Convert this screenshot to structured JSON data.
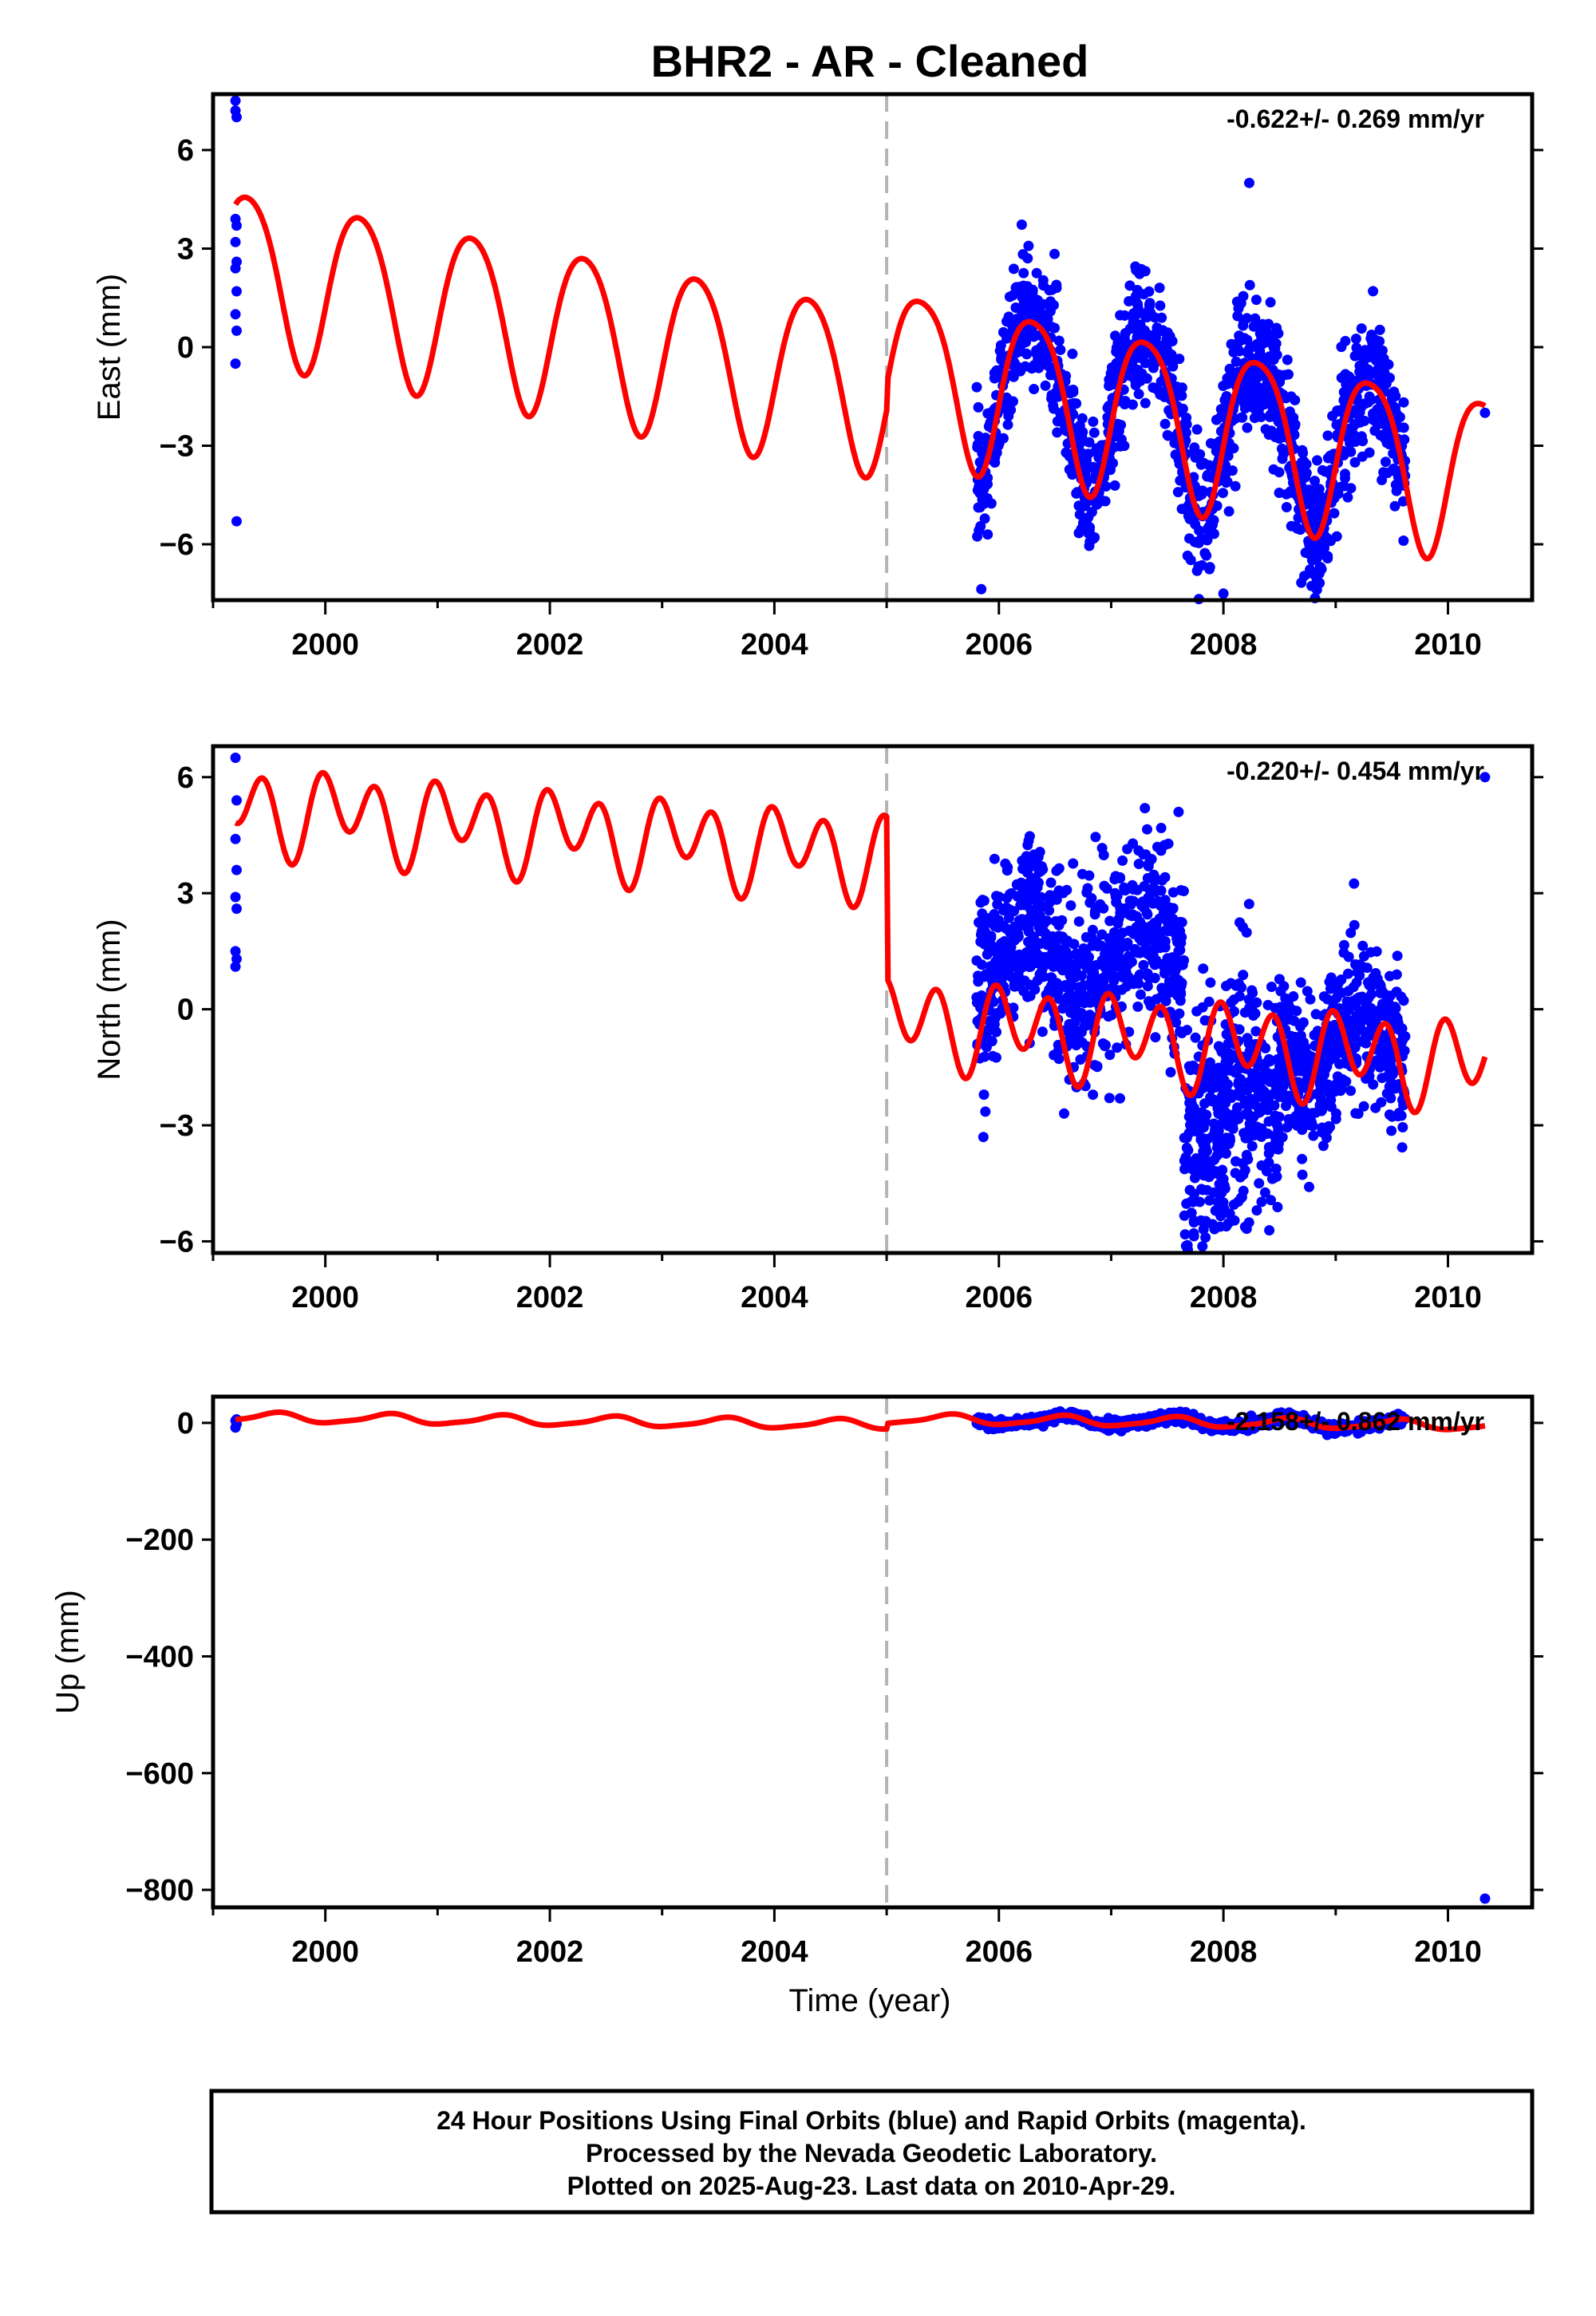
{
  "chart_data": {
    "type": "scatter",
    "title": "BHR2  - AR - Cleaned",
    "xlabel": "Time (year)",
    "x_ticks": [
      2000,
      2002,
      2004,
      2006,
      2008,
      2010
    ],
    "xlim": [
      1999.0,
      2010.75
    ],
    "break_epoch": 2005.0,
    "colors": {
      "observations": "#0000ff",
      "model": "#ff0000",
      "break_line": "#b4b4b4"
    },
    "panels": [
      {
        "id": "east",
        "ylabel": "East (mm)",
        "ylim": [
          -7.7,
          7.7
        ],
        "y_ticks": [
          6,
          3,
          0,
          -3,
          -6
        ],
        "y_tick_labels": [
          "6",
          "3",
          "0",
          "−3",
          "−6"
        ],
        "rate_label": "-0.622+/- 0.269 mm/yr",
        "model": {
          "start": 1999.2,
          "end": 2010.33,
          "break": 2005.0,
          "pre": {
            "offset": -1.25,
            "trend": -0.622,
            "annual_amp": 2.55,
            "annual_phase_deg": -20,
            "semi_amp": 0.3,
            "semi_phase_deg": 40
          },
          "post": {
            "offset": -0.55,
            "trend": -0.622,
            "annual_amp": 2.5,
            "annual_phase_deg": -20,
            "semi_amp": 0.4,
            "semi_phase_deg": 40
          }
        },
        "early_points": [
          [
            1999.2,
            7.5
          ],
          [
            1999.2,
            7.2
          ],
          [
            1999.21,
            7.0
          ],
          [
            1999.2,
            3.9
          ],
          [
            1999.21,
            3.7
          ],
          [
            1999.2,
            3.2
          ],
          [
            1999.21,
            2.6
          ],
          [
            1999.2,
            2.4
          ],
          [
            1999.21,
            1.7
          ],
          [
            1999.2,
            1.0
          ],
          [
            1999.21,
            0.5
          ],
          [
            1999.2,
            -0.5
          ],
          [
            1999.21,
            -5.3
          ]
        ],
        "late_points": [
          [
            2010.33,
            -2.0
          ],
          [
            2008.0,
            -7.5
          ],
          [
            2008.23,
            5.0
          ]
        ],
        "cloud": {
          "start": 2005.8,
          "end": 2009.62,
          "noise": 1.0,
          "count": 1400
        }
      },
      {
        "id": "north",
        "ylabel": "North (mm)",
        "ylim": [
          -6.3,
          6.8
        ],
        "y_ticks": [
          6,
          3,
          0,
          -3,
          -6
        ],
        "y_tick_labels": [
          "6",
          "3",
          "0",
          "−3",
          "−6"
        ],
        "rate_label": "-0.220+/- 0.454 mm/yr",
        "model": {
          "start": 1999.2,
          "end": 2010.33,
          "break": 2005.0,
          "pre": {
            "offset": 3.95,
            "trend": -0.22,
            "annual_amp": 0.5,
            "annual_phase_deg": 30,
            "semi_amp": 0.9,
            "semi_phase_deg": 120
          },
          "post": {
            "offset": -0.25,
            "trend": -0.22,
            "annual_amp": 0.45,
            "annual_phase_deg": 30,
            "semi_amp": 0.95,
            "semi_phase_deg": 120
          }
        },
        "early_points": [
          [
            1999.2,
            6.5
          ],
          [
            1999.21,
            5.4
          ],
          [
            1999.2,
            4.4
          ],
          [
            1999.21,
            3.6
          ],
          [
            1999.2,
            2.9
          ],
          [
            1999.21,
            2.6
          ],
          [
            1999.2,
            1.5
          ],
          [
            1999.21,
            1.3
          ],
          [
            1999.2,
            1.1
          ]
        ],
        "late_points": [
          [
            2010.33,
            6.0
          ],
          [
            2007.3,
            5.2
          ],
          [
            2007.6,
            5.1
          ]
        ],
        "cloud_segments": [
          {
            "start": 2005.8,
            "end": 2007.65,
            "center": 1.3,
            "noise": 1.2,
            "count": 800
          },
          {
            "start": 2007.65,
            "end": 2008.5,
            "center": -2.6,
            "noise": 1.6,
            "count": 450
          },
          {
            "start": 2008.5,
            "end": 2009.62,
            "center": -1.0,
            "noise": 1.0,
            "count": 500
          }
        ]
      },
      {
        "id": "up",
        "ylabel": "Up (mm)",
        "ylim": [
          -830,
          45
        ],
        "y_ticks": [
          0,
          -200,
          -400,
          -600,
          -800
        ],
        "y_tick_labels": [
          "0",
          "−200",
          "−400",
          "−600",
          "−800"
        ],
        "rate_label": "-2.158+/- 0.862 mm/yr",
        "model": {
          "start": 1999.2,
          "end": 2010.33,
          "break": 2005.0,
          "pre": {
            "offset": -3.0,
            "trend": -2.158,
            "annual_amp": 8.0,
            "annual_phase_deg": 250,
            "semi_amp": 2.0,
            "semi_phase_deg": 0
          },
          "post": {
            "offset": 7.0,
            "trend": -2.158,
            "annual_amp": 8.0,
            "annual_phase_deg": 250,
            "semi_amp": 2.0,
            "semi_phase_deg": 0
          }
        },
        "early_points": [
          [
            1999.2,
            4.0
          ],
          [
            1999.21,
            -2.0
          ],
          [
            1999.2,
            -8.0
          ],
          [
            1999.21,
            6.0
          ]
        ],
        "late_points": [
          [
            2010.33,
            -815.0
          ]
        ],
        "cloud": {
          "start": 2005.8,
          "end": 2009.62,
          "noise": 4.0,
          "count": 1200
        }
      }
    ]
  },
  "footer": {
    "line1": "24 Hour Positions Using Final Orbits (blue) and Rapid Orbits (magenta).",
    "line2": "Processed by the Nevada Geodetic Laboratory.",
    "line3": "Plotted on 2025-Aug-23. Last data on 2010-Apr-29."
  }
}
